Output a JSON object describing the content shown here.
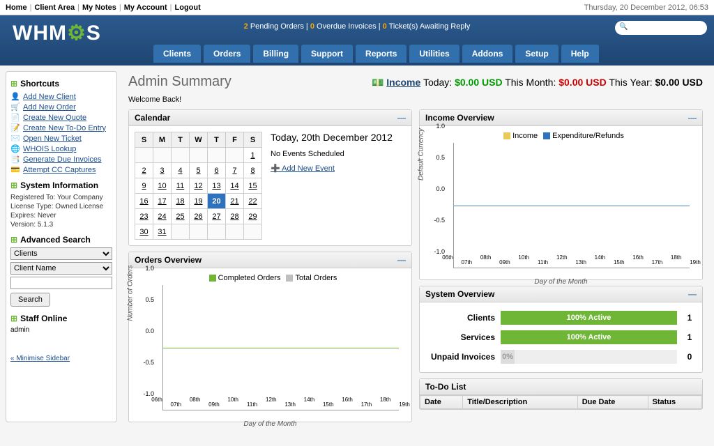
{
  "topbar": {
    "links": [
      "Home",
      "Client Area",
      "My Notes",
      "My Account",
      "Logout"
    ],
    "datetime": "Thursday, 20 December 2012, 06:53"
  },
  "header": {
    "logo_prefix": "WHM",
    "logo_suffix": "S",
    "alerts": {
      "pending_orders_n": "2",
      "pending_orders_t": "Pending Orders",
      "overdue_n": "0",
      "overdue_t": "Overdue Invoices",
      "tickets_n": "0",
      "tickets_t": "Ticket(s) Awaiting Reply"
    },
    "nav": [
      "Clients",
      "Orders",
      "Billing",
      "Support",
      "Reports",
      "Utilities",
      "Addons",
      "Setup",
      "Help"
    ]
  },
  "sidebar": {
    "shortcuts_title": "Shortcuts",
    "shortcuts": [
      {
        "icon": "👤",
        "label": "Add New Client"
      },
      {
        "icon": "🛒",
        "label": "Add New Order"
      },
      {
        "icon": "📄",
        "label": "Create New Quote"
      },
      {
        "icon": "📝",
        "label": "Create New To-Do Entry"
      },
      {
        "icon": "✉️",
        "label": "Open New Ticket"
      },
      {
        "icon": "🌐",
        "label": "WHOIS Lookup"
      },
      {
        "icon": "📑",
        "label": "Generate Due Invoices"
      },
      {
        "icon": "💳",
        "label": "Attempt CC Captures"
      }
    ],
    "sysinfo_title": "System Information",
    "sysinfo": {
      "reg": "Registered To: Your Company",
      "lic": "License Type: Owned License",
      "exp": "Expires: Never",
      "ver": "Version: 5.1.3"
    },
    "adv_title": "Advanced Search",
    "adv_select1": "Clients",
    "adv_select2": "Client Name",
    "search_btn": "Search",
    "staff_title": "Staff Online",
    "staff_user": "admin",
    "minimise": "« Minimise Sidebar"
  },
  "page": {
    "title": "Admin Summary",
    "welcome": "Welcome Back!",
    "income": {
      "label": "Income",
      "today_l": "Today:",
      "today_v": "$0.00 USD",
      "month_l": "This Month:",
      "month_v": "$0.00 USD",
      "year_l": "This Year:",
      "year_v": "$0.00 USD"
    }
  },
  "calendar": {
    "title": "Calendar",
    "days": [
      "S",
      "M",
      "T",
      "W",
      "T",
      "F",
      "S"
    ],
    "lead_blank": 6,
    "last_day": 31,
    "today": 20,
    "today_label": "Today, 20th December 2012",
    "no_events": "No Events Scheduled",
    "add_event": "Add New Event"
  },
  "orders_chart": {
    "title": "Orders Overview",
    "legend": [
      {
        "label": "Completed Orders",
        "color": "#6fb536"
      },
      {
        "label": "Total Orders",
        "color": "#bfbfbf"
      }
    ],
    "ylabel": "Number of Orders",
    "xlabel": "Day of the Month",
    "yticks": [
      "1.0",
      "0.5",
      "0.0",
      "-0.5",
      "-1.0"
    ],
    "xticks": [
      "06th",
      "07th",
      "08th",
      "09th",
      "10th",
      "11th",
      "12th",
      "13th",
      "14th",
      "15th",
      "16th",
      "17th",
      "18th",
      "19th"
    ]
  },
  "income_chart": {
    "title": "Income Overview",
    "legend": [
      {
        "label": "Income",
        "color": "#e8c95a"
      },
      {
        "label": "Expenditure/Refunds",
        "color": "#2e72bf"
      }
    ],
    "ylabel": "Default Currency",
    "xlabel": "Day of the Month",
    "yticks": [
      "1.0",
      "0.5",
      "0.0",
      "-0.5",
      "-1.0"
    ],
    "xticks": [
      "06th",
      "07th",
      "08th",
      "09th",
      "10th",
      "11th",
      "12th",
      "13th",
      "14th",
      "15th",
      "16th",
      "17th",
      "18th",
      "19th"
    ]
  },
  "system_overview": {
    "title": "System Overview",
    "rows": [
      {
        "label": "Clients",
        "pct": 100,
        "text": "100% Active",
        "count": "1",
        "green": true
      },
      {
        "label": "Services",
        "pct": 100,
        "text": "100% Active",
        "count": "1",
        "green": true
      },
      {
        "label": "Unpaid Invoices",
        "pct": 8,
        "text": "0%",
        "count": "0",
        "green": false
      }
    ]
  },
  "todo": {
    "title": "To-Do List",
    "columns": [
      "Date",
      "Title/Description",
      "Due Date",
      "Status"
    ]
  }
}
